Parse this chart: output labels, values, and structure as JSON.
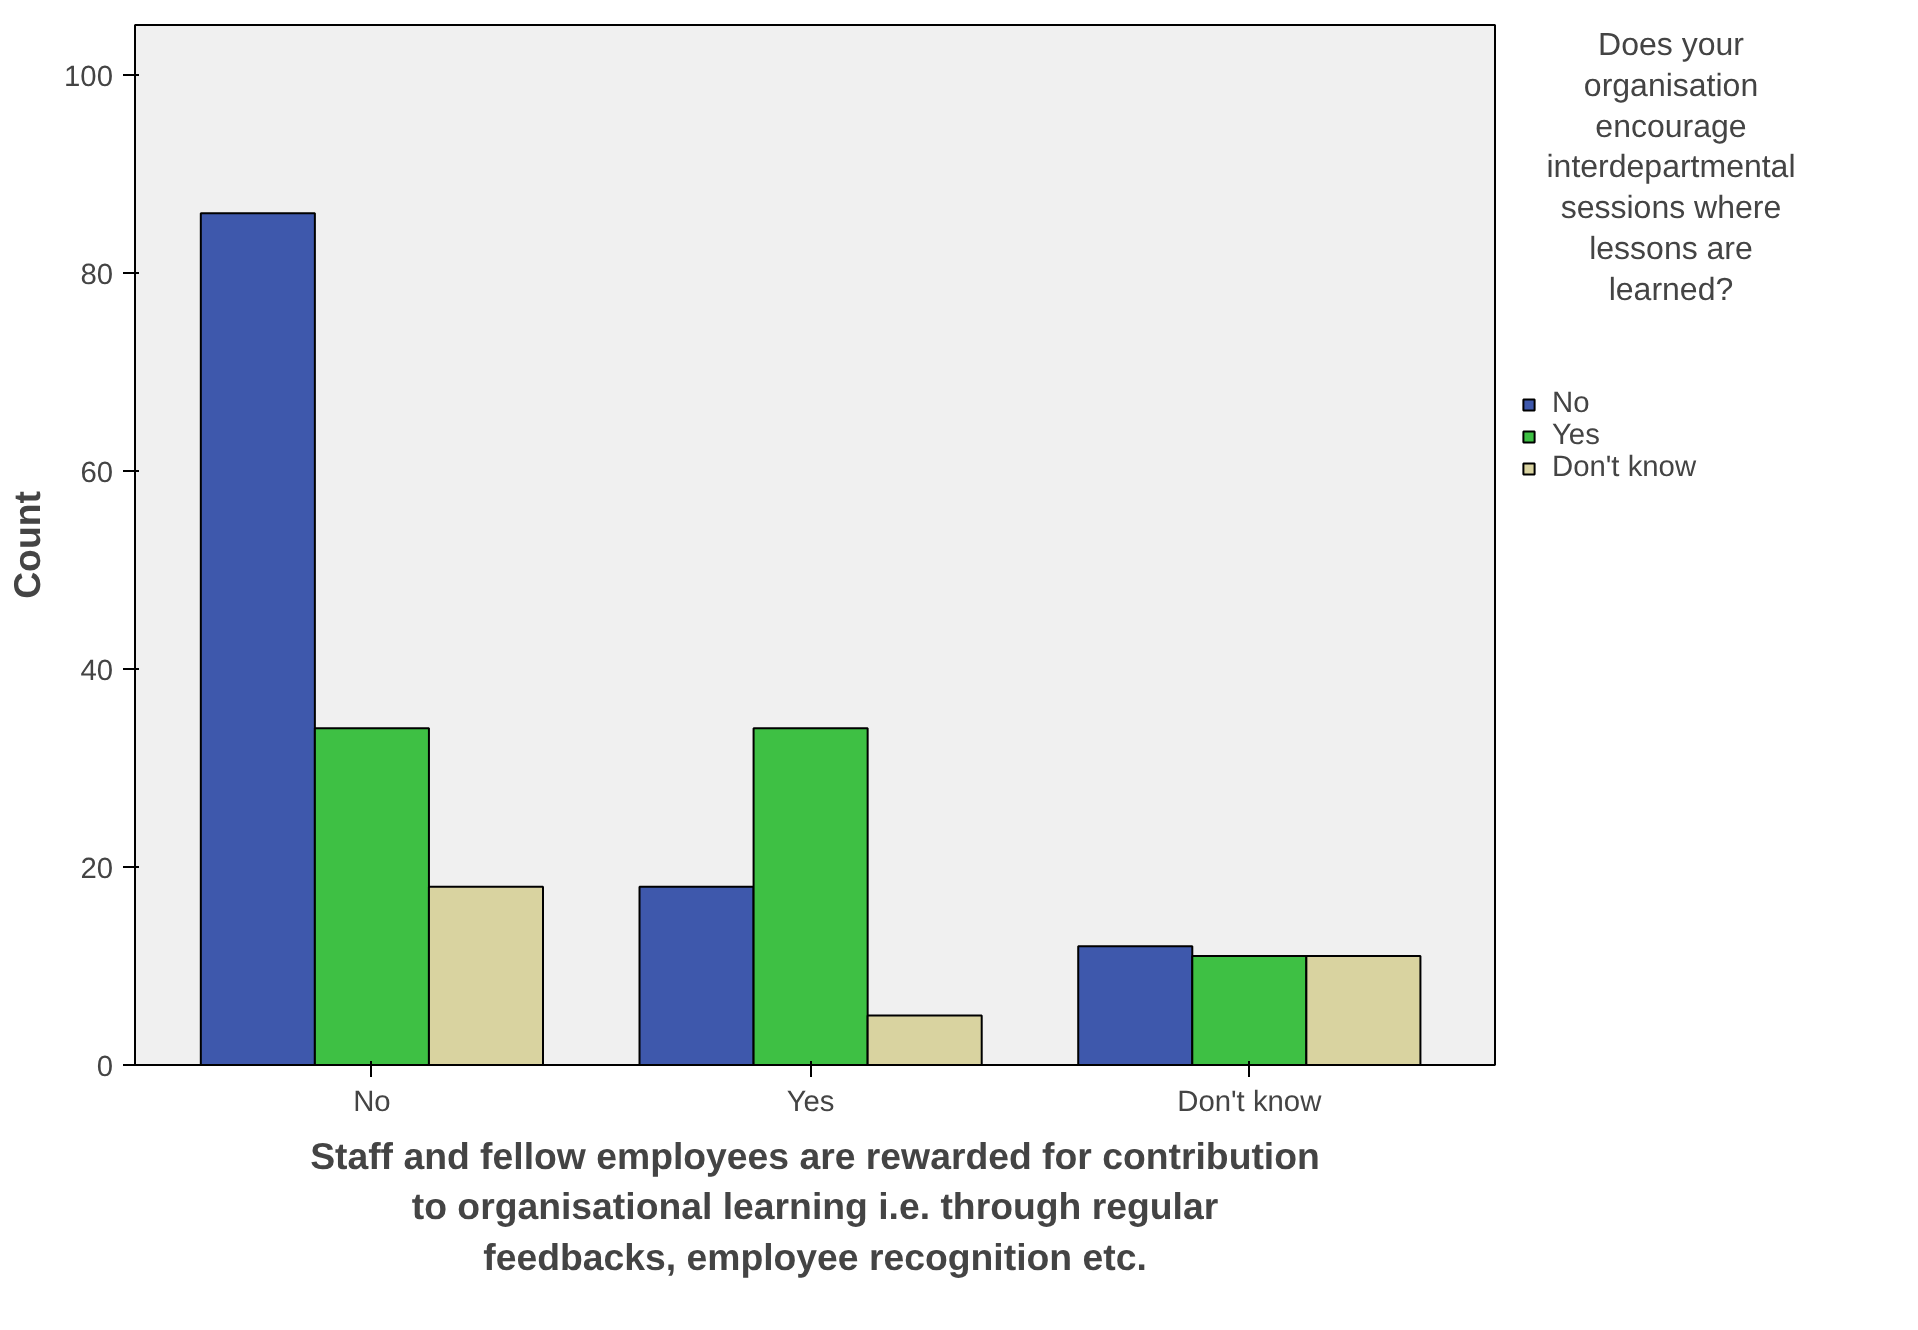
{
  "chart_data": {
    "type": "bar",
    "xlabel": "Staff and fellow employees are rewarded for contribution to organisational learning i.e. through regular feedbacks, employee recognition etc.",
    "ylabel": "Count",
    "legend_title": "Does your organisation encourage interdepartmental sessions where lessons are learned?",
    "categories": [
      "No",
      "Yes",
      "Don't know"
    ],
    "series": [
      {
        "name": "No",
        "color": "#3e58ac",
        "values": [
          86,
          18,
          12
        ]
      },
      {
        "name": "Yes",
        "color": "#3ec044",
        "values": [
          34,
          34,
          11
        ]
      },
      {
        "name": "Don't know",
        "color": "#d9d3a0",
        "values": [
          18,
          5,
          11
        ]
      }
    ],
    "ylim": [
      0,
      105
    ],
    "yticks": [
      0,
      20,
      40,
      60,
      80,
      100
    ],
    "grid": false,
    "legend": "top right"
  }
}
